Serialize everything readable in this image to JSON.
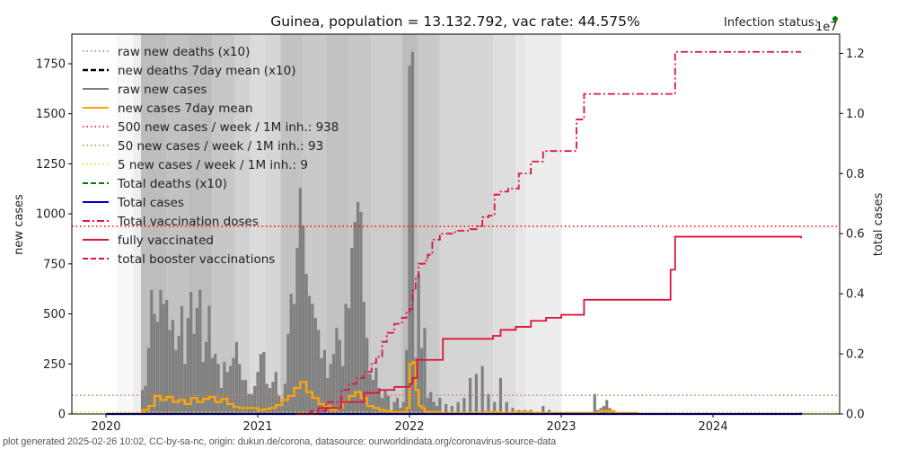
{
  "chart_data": {
    "type": "bar",
    "title": "Guinea, population = 13.132.792, vac rate: 44.575%",
    "status_label": "Infection status:",
    "status_color": "#008000",
    "right_axis_multiplier": "1e7",
    "xlabel": "",
    "ylabel": "new cases",
    "ylabel_right": "total cases",
    "xlim": [
      2019.775,
      2024.834
    ],
    "ylim": [
      0,
      1898
    ],
    "ylim_right": [
      0,
      1.264
    ],
    "x_ticks": [
      "2020",
      "2021",
      "2022",
      "2023",
      "2024"
    ],
    "y_ticks": [
      "0",
      "250",
      "500",
      "750",
      "1000",
      "1250",
      "1500",
      "1750"
    ],
    "y_ticks_right": [
      "0.0",
      "0.2",
      "0.4",
      "0.6",
      "0.8",
      "1.0",
      "1.2"
    ],
    "grid": false,
    "legend_position": "top-left",
    "legend": [
      {
        "label": "raw new deaths (x10)",
        "color": "#808080",
        "style": "dotted"
      },
      {
        "label": "new deaths 7day mean (x10)",
        "color": "#000000",
        "style": "dashed"
      },
      {
        "label": "raw new cases",
        "color": "#808080",
        "style": "solid"
      },
      {
        "label": "new cases 7day mean",
        "color": "#ffa500",
        "style": "solid"
      },
      {
        "label": "500 new cases / week / 1M inh.: 938",
        "color": "#ff0000",
        "style": "dotted"
      },
      {
        "label": "50 new cases / week / 1M inh.: 93",
        "color": "#cd853f",
        "style": "dotted"
      },
      {
        "label": "5 new cases / week / 1M inh.: 9",
        "color": "#ffd700",
        "style": "dotted"
      },
      {
        "label": "Total deaths (x10)",
        "color": "#008000",
        "style": "dashed"
      },
      {
        "label": "Total cases",
        "color": "#0000cd",
        "style": "solid"
      },
      {
        "label": "Total vaccination doses",
        "color": "#dc143c",
        "style": "dashdot"
      },
      {
        "label": "fully vaccinated",
        "color": "#dc143c",
        "style": "solid"
      },
      {
        "label": "total booster vaccinations",
        "color": "#dc143c",
        "style": "dashed"
      }
    ],
    "thresholds": [
      {
        "name": "500-per-week",
        "value": 938,
        "color": "#ff0000"
      },
      {
        "name": "50-per-week",
        "value": 93,
        "color": "#cd853f"
      },
      {
        "name": "5-per-week",
        "value": 9,
        "color": "#ffd700"
      }
    ],
    "background_bands": [
      {
        "x0": 2020.07,
        "x1": 2020.18,
        "shade": 0.97
      },
      {
        "x0": 2020.18,
        "x1": 2020.23,
        "shade": 0.93
      },
      {
        "x0": 2020.23,
        "x1": 2020.4,
        "shade": 0.74
      },
      {
        "x0": 2020.4,
        "x1": 2020.55,
        "shade": 0.76
      },
      {
        "x0": 2020.55,
        "x1": 2020.7,
        "shade": 0.74
      },
      {
        "x0": 2020.7,
        "x1": 2020.85,
        "shade": 0.78
      },
      {
        "x0": 2020.85,
        "x1": 2020.95,
        "shade": 0.82
      },
      {
        "x0": 2020.95,
        "x1": 2021.05,
        "shade": 0.86
      },
      {
        "x0": 2021.05,
        "x1": 2021.15,
        "shade": 0.84
      },
      {
        "x0": 2021.15,
        "x1": 2021.3,
        "shade": 0.76
      },
      {
        "x0": 2021.3,
        "x1": 2021.45,
        "shade": 0.79
      },
      {
        "x0": 2021.45,
        "x1": 2021.6,
        "shade": 0.76
      },
      {
        "x0": 2021.6,
        "x1": 2021.75,
        "shade": 0.78
      },
      {
        "x0": 2021.75,
        "x1": 2021.95,
        "shade": 0.8
      },
      {
        "x0": 2021.95,
        "x1": 2022.05,
        "shade": 0.74
      },
      {
        "x0": 2022.05,
        "x1": 2022.2,
        "shade": 0.79
      },
      {
        "x0": 2022.2,
        "x1": 2022.55,
        "shade": 0.84
      },
      {
        "x0": 2022.55,
        "x1": 2022.7,
        "shade": 0.87
      },
      {
        "x0": 2022.7,
        "x1": 2022.76,
        "shade": 0.9
      },
      {
        "x0": 2022.76,
        "x1": 2023.0,
        "shade": 0.93
      }
    ],
    "raw_new_cases": {
      "x": [
        2020.24,
        2020.26,
        2020.28,
        2020.3,
        2020.32,
        2020.34,
        2020.36,
        2020.38,
        2020.4,
        2020.42,
        2020.44,
        2020.46,
        2020.48,
        2020.5,
        2020.52,
        2020.54,
        2020.56,
        2020.58,
        2020.6,
        2020.62,
        2020.64,
        2020.66,
        2020.68,
        2020.7,
        2020.72,
        2020.74,
        2020.76,
        2020.78,
        2020.8,
        2020.82,
        2020.84,
        2020.86,
        2020.88,
        2020.9,
        2020.92,
        2020.94,
        2020.96,
        2020.98,
        2021.0,
        2021.02,
        2021.04,
        2021.06,
        2021.08,
        2021.1,
        2021.12,
        2021.14,
        2021.16,
        2021.18,
        2021.2,
        2021.22,
        2021.24,
        2021.26,
        2021.28,
        2021.3,
        2021.32,
        2021.34,
        2021.36,
        2021.38,
        2021.4,
        2021.42,
        2021.44,
        2021.46,
        2021.48,
        2021.5,
        2021.52,
        2021.54,
        2021.56,
        2021.58,
        2021.6,
        2021.62,
        2021.64,
        2021.66,
        2021.68,
        2021.7,
        2021.72,
        2021.74,
        2021.76,
        2021.78,
        2021.8,
        2021.82,
        2021.84,
        2021.86,
        2021.88,
        2021.9,
        2021.92,
        2021.94,
        2021.96,
        2021.98,
        2022.0,
        2022.02,
        2022.04,
        2022.06,
        2022.08,
        2022.1,
        2022.12,
        2022.14,
        2022.16,
        2022.18,
        2022.2,
        2022.24,
        2022.28,
        2022.32,
        2022.36,
        2022.4,
        2022.44,
        2022.48,
        2022.52,
        2022.56,
        2022.6,
        2022.64,
        2022.68,
        2022.72,
        2022.76,
        2022.8,
        2022.84,
        2022.88,
        2022.92,
        2022.96,
        2023.0,
        2023.04,
        2023.08,
        2023.12,
        2023.16,
        2023.2,
        2023.22,
        2023.24,
        2023.26,
        2023.28,
        2023.3,
        2023.32,
        2023.34,
        2023.36
      ],
      "values": [
        120,
        140,
        330,
        620,
        500,
        460,
        620,
        550,
        570,
        420,
        470,
        320,
        390,
        540,
        250,
        480,
        610,
        400,
        530,
        620,
        260,
        360,
        540,
        280,
        300,
        250,
        130,
        260,
        210,
        240,
        280,
        360,
        250,
        170,
        170,
        100,
        100,
        140,
        210,
        300,
        310,
        150,
        130,
        160,
        210,
        90,
        60,
        150,
        400,
        600,
        550,
        830,
        1130,
        940,
        700,
        590,
        550,
        480,
        420,
        280,
        320,
        180,
        250,
        300,
        430,
        370,
        240,
        550,
        530,
        830,
        960,
        1060,
        1010,
        560,
        380,
        200,
        170,
        230,
        130,
        80,
        120,
        90,
        20,
        60,
        80,
        30,
        60,
        320,
        1740,
        1810,
        280,
        700,
        330,
        430,
        80,
        110,
        60,
        40,
        80,
        50,
        40,
        60,
        80,
        180,
        200,
        240,
        100,
        60,
        180,
        60,
        30,
        20,
        20,
        20,
        10,
        40,
        20,
        10,
        10,
        10,
        10,
        10,
        10,
        10,
        100,
        20,
        30,
        40,
        70,
        30,
        20,
        10
      ]
    },
    "new_cases_7day_mean": {
      "x": [
        2020.0,
        2020.2,
        2020.24,
        2020.28,
        2020.32,
        2020.36,
        2020.4,
        2020.44,
        2020.48,
        2020.52,
        2020.56,
        2020.6,
        2020.64,
        2020.68,
        2020.72,
        2020.76,
        2020.8,
        2020.84,
        2020.88,
        2020.92,
        2020.96,
        2021.0,
        2021.04,
        2021.08,
        2021.12,
        2021.16,
        2021.2,
        2021.24,
        2021.28,
        2021.32,
        2021.36,
        2021.4,
        2021.44,
        2021.48,
        2021.52,
        2021.56,
        2021.6,
        2021.64,
        2021.68,
        2021.72,
        2021.76,
        2021.8,
        2021.84,
        2021.88,
        2021.92,
        2021.96,
        2021.98,
        2022.0,
        2022.02,
        2022.04,
        2022.06,
        2022.08,
        2022.1,
        2022.14,
        2022.2,
        2022.3,
        2022.4,
        2022.5,
        2022.6,
        2022.7,
        2022.8,
        2022.9,
        2023.0,
        2023.1,
        2023.2,
        2023.25,
        2023.35,
        2023.5
      ],
      "values": [
        0,
        0,
        20,
        40,
        90,
        70,
        85,
        60,
        70,
        50,
        80,
        60,
        75,
        85,
        60,
        75,
        50,
        35,
        30,
        30,
        30,
        20,
        25,
        30,
        45,
        70,
        90,
        130,
        160,
        110,
        80,
        50,
        40,
        20,
        30,
        60,
        90,
        110,
        80,
        40,
        30,
        20,
        15,
        10,
        10,
        10,
        30,
        250,
        260,
        120,
        40,
        30,
        10,
        10,
        5,
        5,
        5,
        10,
        5,
        10,
        5,
        5,
        5,
        5,
        5,
        15,
        5,
        0
      ]
    },
    "total_vaccination_doses_1e7": {
      "x": [
        2021.25,
        2021.35,
        2021.45,
        2021.55,
        2021.6,
        2021.65,
        2021.7,
        2021.75,
        2021.78,
        2021.82,
        2021.85,
        2021.9,
        2021.95,
        2021.98,
        2022.0,
        2022.02,
        2022.04,
        2022.06,
        2022.1,
        2022.12,
        2022.15,
        2022.2,
        2022.3,
        2022.4,
        2022.45,
        2022.48,
        2022.52,
        2022.56,
        2022.6,
        2022.65,
        2022.72,
        2022.8,
        2022.88,
        2023.05,
        2023.1,
        2023.15,
        2023.72,
        2023.75,
        2024.58
      ],
      "values": [
        0.0,
        0.01,
        0.04,
        0.08,
        0.1,
        0.12,
        0.14,
        0.17,
        0.19,
        0.24,
        0.27,
        0.3,
        0.32,
        0.34,
        0.35,
        0.41,
        0.45,
        0.5,
        0.51,
        0.53,
        0.58,
        0.6,
        0.61,
        0.615,
        0.625,
        0.655,
        0.66,
        0.73,
        0.74,
        0.75,
        0.8,
        0.84,
        0.875,
        0.875,
        0.98,
        1.065,
        1.065,
        1.205,
        1.205
      ]
    },
    "fully_vaccinated_1e7": {
      "x": [
        2021.25,
        2021.4,
        2021.55,
        2021.7,
        2021.8,
        2021.9,
        2022.0,
        2022.02,
        2022.05,
        2022.2,
        2022.22,
        2022.3,
        2022.5,
        2022.55,
        2022.6,
        2022.7,
        2022.8,
        2022.9,
        2023.0,
        2023.1,
        2023.15,
        2023.72,
        2023.75,
        2024.58
      ],
      "values": [
        0.0,
        0.02,
        0.04,
        0.07,
        0.08,
        0.09,
        0.1,
        0.12,
        0.18,
        0.18,
        0.25,
        0.25,
        0.25,
        0.26,
        0.28,
        0.29,
        0.31,
        0.32,
        0.33,
        0.33,
        0.38,
        0.48,
        0.59,
        0.585
      ]
    },
    "total_cases_1e7": {
      "x": [
        2020.0,
        2024.58
      ],
      "values": [
        0.0,
        0.004
      ]
    }
  },
  "footer": "plot generated 2025-02-26 10:02, CC-by-sa-nc, origin: dukun.de/corona, datasource: ourworldindata.org/coronavirus-source-data"
}
